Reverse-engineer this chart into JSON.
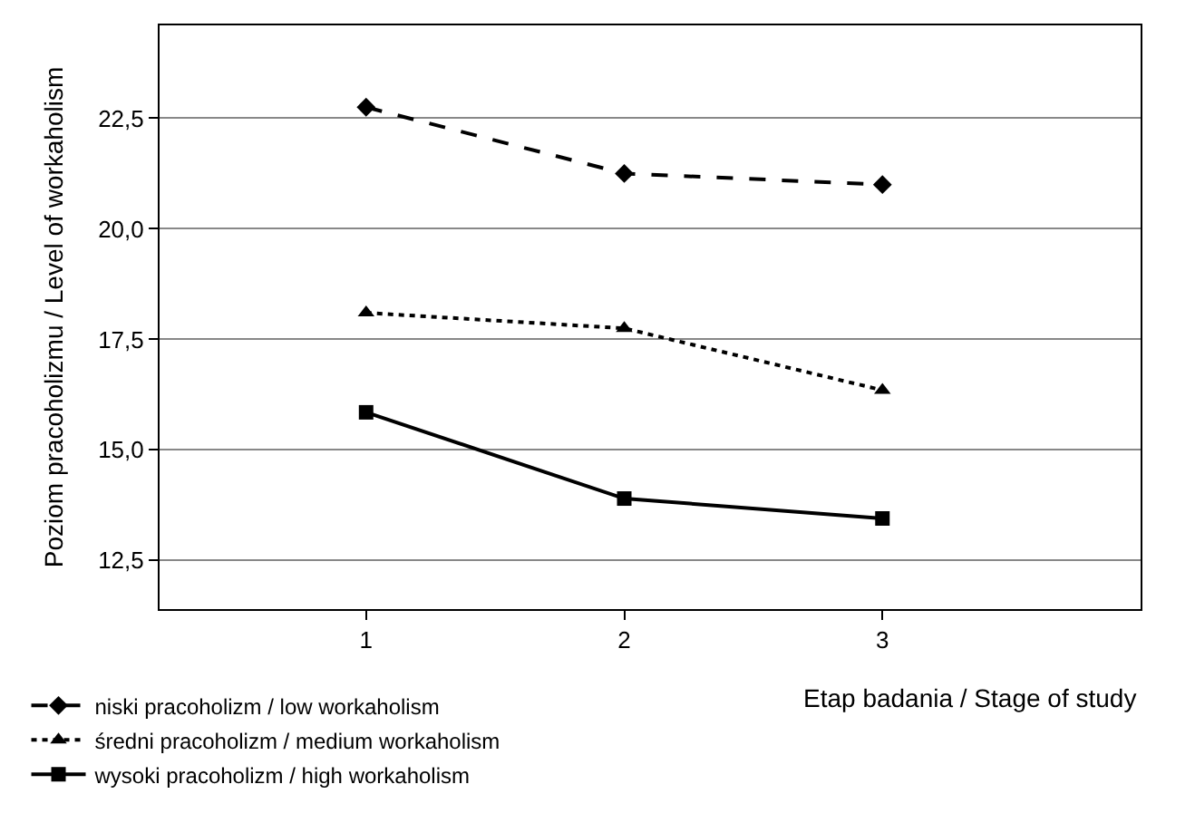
{
  "chart_data": {
    "type": "line",
    "xlabel": "Etap badania / Stage of study",
    "ylabel": "Poziom pracoholizmu / Level of workaholism",
    "x": [
      1,
      2,
      3
    ],
    "xlim": [
      0.2,
      4.0
    ],
    "xticks": [
      1,
      2,
      3
    ],
    "ylim": [
      11.4,
      24.6
    ],
    "yticks": [
      {
        "value": 12.5,
        "label": "12,5"
      },
      {
        "value": 15.0,
        "label": "15,0"
      },
      {
        "value": 17.5,
        "label": "17,5"
      },
      {
        "value": 20.0,
        "label": "20,0"
      },
      {
        "value": 22.5,
        "label": "22,5"
      }
    ],
    "grid": "y",
    "legend": "bottom left",
    "series": [
      {
        "name": "niski pracoholizm / low workaholism",
        "color": "#000000",
        "values": [
          22.75,
          21.25,
          21.0
        ],
        "marker": "diamond",
        "line_style": "dashed"
      },
      {
        "name": "średni pracoholizm / medium workaholism",
        "color": "#000000",
        "values": [
          18.1,
          17.75,
          16.35
        ],
        "marker": "triangle",
        "line_style": "dotted"
      },
      {
        "name": "wysoki pracoholizm / high workaholism",
        "color": "#000000",
        "values": [
          15.85,
          13.9,
          13.45
        ],
        "marker": "square",
        "line_style": "solid"
      }
    ]
  }
}
